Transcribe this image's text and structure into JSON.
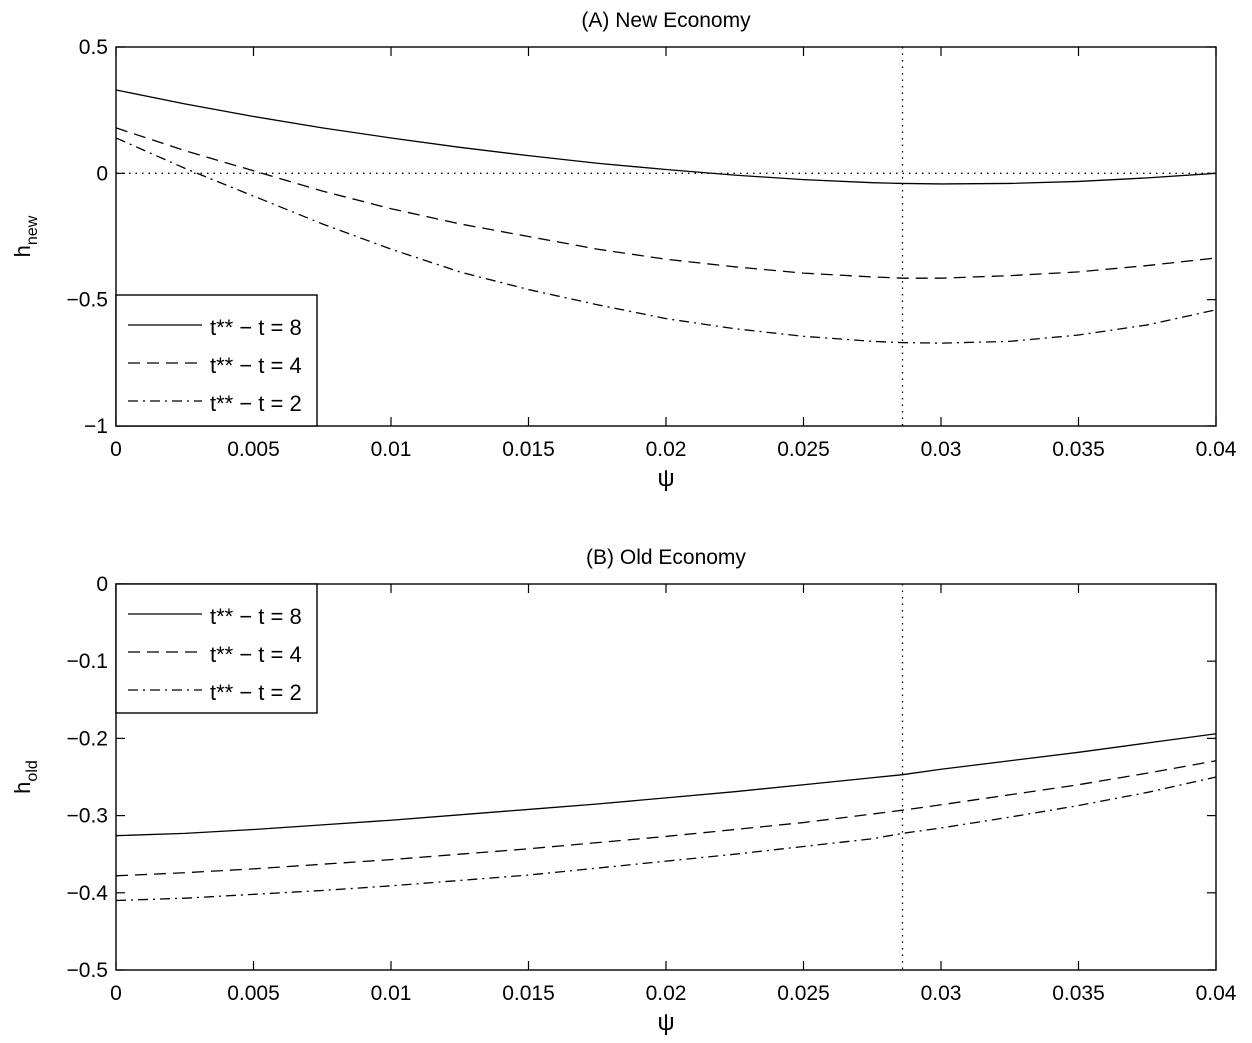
{
  "chart_data": [
    {
      "type": "line",
      "title": "(A) New Economy",
      "xlabel": "ψ",
      "ylabel": "h",
      "ylabel_sub": "new",
      "xlim": [
        0,
        0.04
      ],
      "ylim": [
        -1,
        0.5
      ],
      "xticks": [
        0,
        0.005,
        0.01,
        0.015,
        0.02,
        0.025,
        0.03,
        0.035,
        0.04
      ],
      "xtick_labels": [
        "0",
        "0.005",
        "0.01",
        "0.015",
        "0.02",
        "0.025",
        "0.03",
        "0.035",
        "0.04"
      ],
      "yticks": [
        -1,
        -0.5,
        0,
        0.5
      ],
      "ytick_labels": [
        "−1",
        "−0.5",
        "0",
        "0.5"
      ],
      "grid": false,
      "legend_position": "bottom-left",
      "reference_lines": [
        {
          "orientation": "horizontal",
          "value": 0,
          "style": "dotted"
        },
        {
          "orientation": "vertical",
          "value": 0.0286,
          "style": "dotted"
        }
      ],
      "x": [
        0,
        0.0025,
        0.005,
        0.0075,
        0.01,
        0.0125,
        0.015,
        0.0175,
        0.02,
        0.0225,
        0.025,
        0.0275,
        0.0286,
        0.03,
        0.0325,
        0.035,
        0.0375,
        0.04
      ],
      "series": [
        {
          "name": "t** − t = 8",
          "style": "solid",
          "values": [
            0.33,
            0.275,
            0.225,
            0.18,
            0.14,
            0.103,
            0.07,
            0.04,
            0.015,
            -0.007,
            -0.025,
            -0.037,
            -0.04,
            -0.042,
            -0.04,
            -0.032,
            -0.018,
            0.0
          ]
        },
        {
          "name": "t** − t = 4",
          "style": "dashed",
          "values": [
            0.18,
            0.09,
            0.01,
            -0.07,
            -0.14,
            -0.2,
            -0.25,
            -0.3,
            -0.34,
            -0.37,
            -0.395,
            -0.41,
            -0.415,
            -0.415,
            -0.405,
            -0.39,
            -0.365,
            -0.335
          ]
        },
        {
          "name": "t** − t = 2",
          "style": "dash-dot",
          "values": [
            0.14,
            0.02,
            -0.09,
            -0.2,
            -0.3,
            -0.39,
            -0.46,
            -0.52,
            -0.575,
            -0.615,
            -0.645,
            -0.665,
            -0.67,
            -0.672,
            -0.665,
            -0.64,
            -0.6,
            -0.54
          ]
        }
      ]
    },
    {
      "type": "line",
      "title": "(B) Old Economy",
      "xlabel": "ψ",
      "ylabel": "h",
      "ylabel_sub": "old",
      "xlim": [
        0,
        0.04
      ],
      "ylim": [
        -0.5,
        0
      ],
      "xticks": [
        0,
        0.005,
        0.01,
        0.015,
        0.02,
        0.025,
        0.03,
        0.035,
        0.04
      ],
      "xtick_labels": [
        "0",
        "0.005",
        "0.01",
        "0.015",
        "0.02",
        "0.025",
        "0.03",
        "0.035",
        "0.04"
      ],
      "yticks": [
        -0.5,
        -0.4,
        -0.3,
        -0.2,
        -0.1,
        0
      ],
      "ytick_labels": [
        "−0.5",
        "−0.4",
        "−0.3",
        "−0.2",
        "−0.1",
        "0"
      ],
      "grid": false,
      "legend_position": "top-left",
      "reference_lines": [
        {
          "orientation": "vertical",
          "value": 0.0286,
          "style": "dotted"
        }
      ],
      "x": [
        0,
        0.0025,
        0.005,
        0.0075,
        0.01,
        0.0125,
        0.015,
        0.0175,
        0.02,
        0.0225,
        0.025,
        0.0275,
        0.0286,
        0.03,
        0.0325,
        0.035,
        0.0375,
        0.04
      ],
      "series": [
        {
          "name": "t** − t = 8",
          "style": "solid",
          "values": [
            -0.326,
            -0.323,
            -0.318,
            -0.312,
            -0.306,
            -0.299,
            -0.292,
            -0.285,
            -0.277,
            -0.269,
            -0.26,
            -0.251,
            -0.247,
            -0.24,
            -0.229,
            -0.218,
            -0.206,
            -0.194
          ]
        },
        {
          "name": "t** − t = 4",
          "style": "dashed",
          "values": [
            -0.378,
            -0.374,
            -0.369,
            -0.363,
            -0.357,
            -0.35,
            -0.343,
            -0.335,
            -0.327,
            -0.318,
            -0.309,
            -0.298,
            -0.293,
            -0.286,
            -0.273,
            -0.26,
            -0.245,
            -0.229
          ]
        },
        {
          "name": "t** − t = 2",
          "style": "dash-dot",
          "values": [
            -0.41,
            -0.407,
            -0.402,
            -0.397,
            -0.391,
            -0.384,
            -0.377,
            -0.368,
            -0.359,
            -0.35,
            -0.34,
            -0.33,
            -0.323,
            -0.316,
            -0.302,
            -0.287,
            -0.27,
            -0.25
          ]
        }
      ]
    }
  ]
}
